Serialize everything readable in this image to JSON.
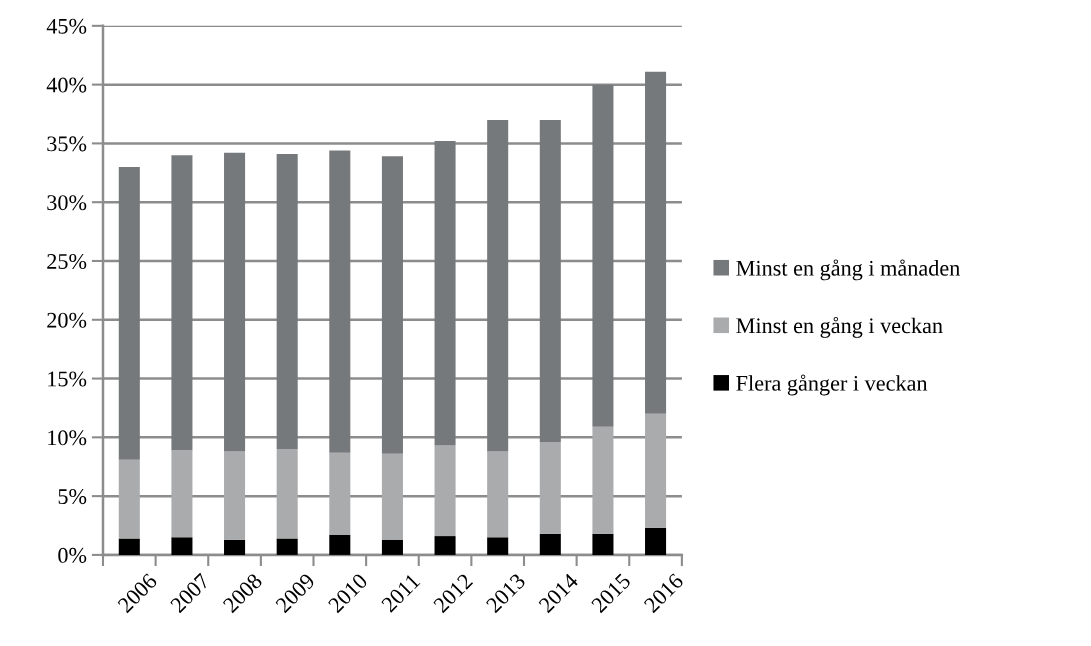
{
  "chart_data": {
    "type": "bar",
    "stacked": true,
    "categories": [
      "2006",
      "2007",
      "2008",
      "2009",
      "2010",
      "2011",
      "2012",
      "2013",
      "2014",
      "2015",
      "2016"
    ],
    "series": [
      {
        "name": "Flera gånger i veckan",
        "color": "#000000",
        "values": [
          1.4,
          1.5,
          1.3,
          1.4,
          1.7,
          1.3,
          1.6,
          1.5,
          1.8,
          1.8,
          2.3
        ]
      },
      {
        "name": "Minst en gång i veckan",
        "color": "#a9abac",
        "values": [
          6.7,
          7.4,
          7.5,
          7.6,
          7.0,
          7.3,
          7.7,
          7.3,
          7.8,
          9.1,
          9.7
        ]
      },
      {
        "name": "Minst en gång i månaden",
        "color": "#76797b",
        "values": [
          24.9,
          25.1,
          25.4,
          25.1,
          25.7,
          25.3,
          25.9,
          28.2,
          27.4,
          29.1,
          29.1
        ]
      }
    ],
    "ylim": [
      0,
      45
    ],
    "yticks": [
      {
        "value": 0,
        "label": "0%"
      },
      {
        "value": 5,
        "label": "5%"
      },
      {
        "value": 10,
        "label": "10%"
      },
      {
        "value": 15,
        "label": "15%"
      },
      {
        "value": 20,
        "label": "20%"
      },
      {
        "value": 25,
        "label": "25%"
      },
      {
        "value": 30,
        "label": "30%"
      },
      {
        "value": 35,
        "label": "35%"
      },
      {
        "value": 40,
        "label": "40%"
      },
      {
        "value": 45,
        "label": "45%"
      }
    ],
    "grid": "y",
    "legend": "right"
  }
}
